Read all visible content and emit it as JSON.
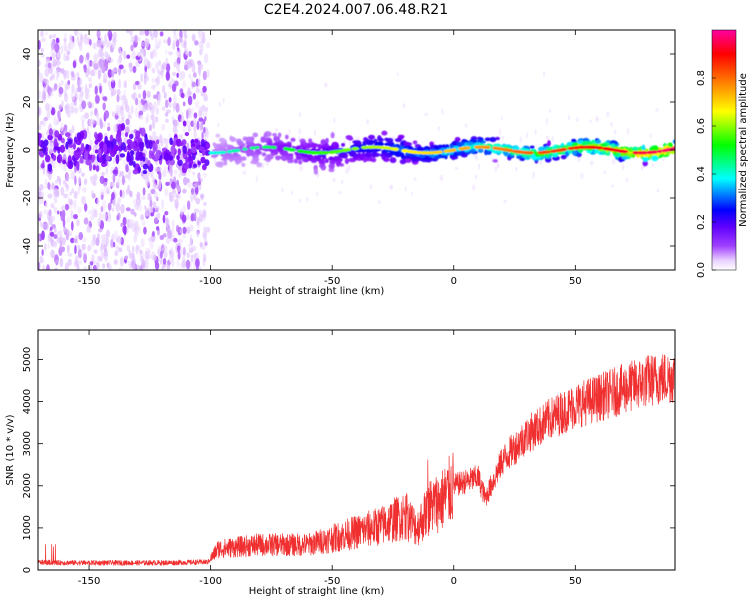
{
  "title": "C2E4.2024.007.06.48.R21",
  "chart_data": [
    {
      "type": "heatmap",
      "xlabel": "Height of straight line (km)",
      "ylabel": "Frequency (Hz)",
      "xlim": [
        -171,
        91
      ],
      "ylim": [
        -50,
        50
      ],
      "x_ticks": [
        -150,
        -100,
        -50,
        0,
        50
      ],
      "y_ticks": [
        -40,
        -20,
        0,
        20,
        40
      ],
      "colorbar": {
        "label": "Normalized spectral amplitude",
        "range": [
          0,
          1
        ],
        "ticks": [
          "0.0",
          "0.2",
          "0.4",
          "0.6",
          "0.8"
        ],
        "colors": [
          "#ffffff",
          "#c080ff",
          "#8000ff",
          "#0000ff",
          "#00ffff",
          "#00ff00",
          "#ffff00",
          "#ff8000",
          "#ff0000",
          "#ff00a0"
        ]
      },
      "features": {
        "diffuse_noise_region_km": [
          -171,
          -101
        ],
        "strong_line_start_km": -100,
        "center_frequency_hz": 0
      },
      "grid": false
    },
    {
      "type": "line",
      "xlabel": "Height of straight line (km)",
      "ylabel": "SNR (10 * v/v)",
      "xlim": [
        -171,
        91
      ],
      "ylim": [
        0,
        5700
      ],
      "x_ticks": [
        -150,
        -100,
        -50,
        0,
        50
      ],
      "y_ticks": [
        0,
        1000,
        2000,
        3000,
        4000,
        5000
      ],
      "color": "#f03030",
      "trend": {
        "x": [
          -171,
          -150,
          -120,
          -101,
          -97,
          -80,
          -60,
          -50,
          -40,
          -30,
          -20,
          -15,
          -10,
          -5,
          0,
          5,
          10,
          13,
          20,
          30,
          40,
          50,
          60,
          70,
          80,
          91
        ],
        "y": [
          180,
          170,
          170,
          190,
          500,
          600,
          600,
          750,
          900,
          1050,
          1300,
          1000,
          1500,
          1650,
          2000,
          2100,
          2200,
          1700,
          2600,
          3200,
          3600,
          3900,
          4100,
          4300,
          4500,
          4600
        ]
      },
      "grid": false
    }
  ]
}
